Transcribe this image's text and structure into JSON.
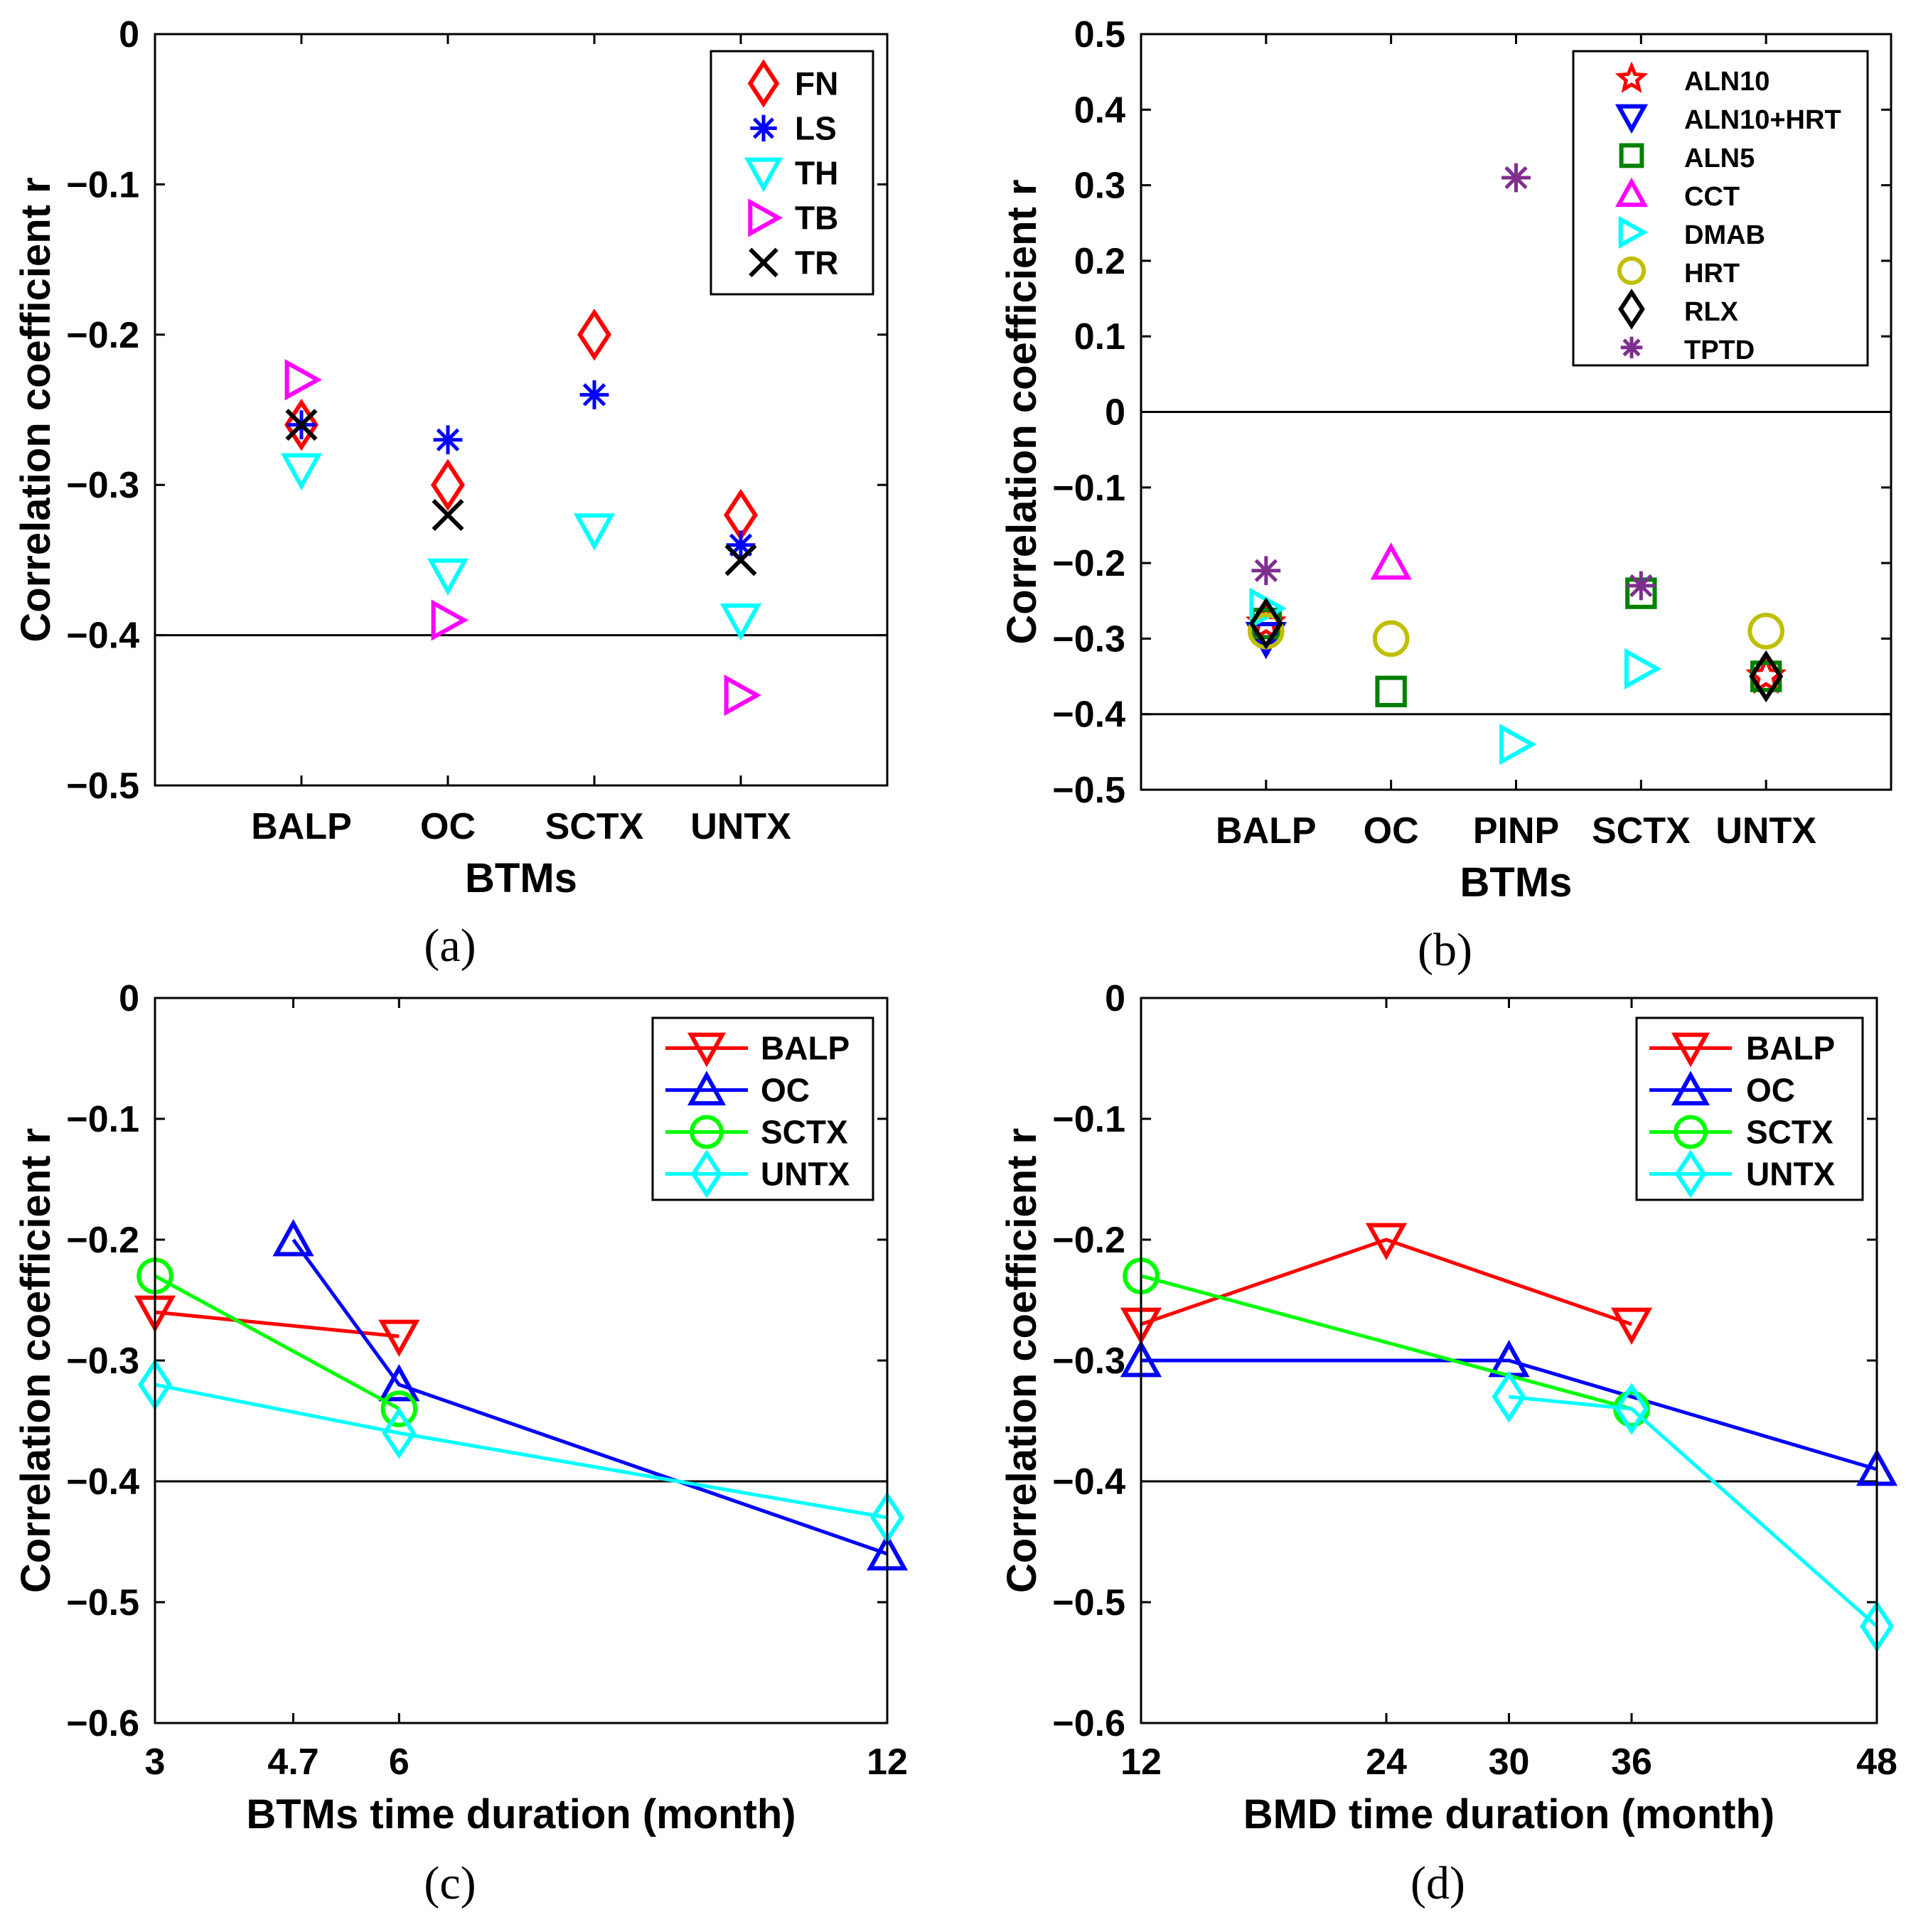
{
  "chart_data": [
    {
      "id": "a",
      "type": "scatter",
      "caption": "(a)",
      "xlabel": "BTMs",
      "ylabel": "Correlation coefficient r",
      "categories": [
        "BALP",
        "OC",
        "SCTX",
        "UNTX"
      ],
      "ylim": [
        -0.5,
        0
      ],
      "yticks": [
        0,
        -0.1,
        -0.2,
        -0.3,
        -0.4,
        -0.5
      ],
      "ytick_labels": [
        "0",
        "−0.1",
        "−0.2",
        "−0.3",
        "−0.4",
        "−0.5"
      ],
      "reference_lines": [
        -0.4
      ],
      "legend_location": "top-right",
      "series": [
        {
          "name": "FN",
          "marker": "diamond",
          "color": "#ff0000",
          "values": [
            -0.26,
            -0.3,
            -0.2,
            -0.32
          ]
        },
        {
          "name": "LS",
          "marker": "asterisk",
          "color": "#0000ff",
          "values": [
            -0.26,
            -0.27,
            -0.24,
            -0.34
          ]
        },
        {
          "name": "TH",
          "marker": "triangle-down",
          "color": "#00ffff",
          "values": [
            -0.29,
            -0.36,
            -0.33,
            -0.39
          ]
        },
        {
          "name": "TB",
          "marker": "triangle-right",
          "color": "#ff00ff",
          "values": [
            -0.23,
            -0.39,
            null,
            -0.44
          ]
        },
        {
          "name": "TR",
          "marker": "x",
          "color": "#000000",
          "values": [
            -0.26,
            -0.32,
            null,
            -0.35
          ]
        }
      ]
    },
    {
      "id": "b",
      "type": "scatter",
      "caption": "(b)",
      "xlabel": "BTMs",
      "ylabel": "Correlation coefficient r",
      "categories": [
        "BALP",
        "OC",
        "PINP",
        "SCTX",
        "UNTX"
      ],
      "ylim": [
        -0.5,
        0.5
      ],
      "yticks": [
        0.5,
        0.4,
        0.3,
        0.2,
        0.1,
        0,
        -0.1,
        -0.2,
        -0.3,
        -0.4,
        -0.5
      ],
      "ytick_labels": [
        "0.5",
        "0.4",
        "0.3",
        "0.2",
        "0.1",
        "0",
        "−0.1",
        "−0.2",
        "−0.3",
        "−0.4",
        "−0.5"
      ],
      "reference_lines": [
        0,
        -0.4
      ],
      "legend_location": "top-right",
      "series": [
        {
          "name": "ALN10",
          "marker": "star",
          "color": "#ff0000",
          "values": [
            -0.28,
            null,
            null,
            null,
            -0.35
          ]
        },
        {
          "name": "ALN10+HRT",
          "marker": "triangle-down",
          "color": "#0000ff",
          "values": [
            -0.3,
            null,
            null,
            null,
            null
          ]
        },
        {
          "name": "ALN5",
          "marker": "square",
          "color": "#008000",
          "values": [
            -0.28,
            -0.37,
            null,
            -0.24,
            -0.35
          ]
        },
        {
          "name": "CCT",
          "marker": "triangle-up",
          "color": "#ff00ff",
          "values": [
            null,
            -0.2,
            null,
            null,
            null
          ]
        },
        {
          "name": "DMAB",
          "marker": "triangle-right",
          "color": "#00ffff",
          "values": [
            -0.26,
            null,
            -0.44,
            -0.34,
            null
          ]
        },
        {
          "name": "HRT",
          "marker": "circle",
          "color": "#bfbf00",
          "values": [
            -0.29,
            -0.3,
            null,
            null,
            -0.29
          ]
        },
        {
          "name": "RLX",
          "marker": "diamond",
          "color": "#000000",
          "values": [
            -0.28,
            null,
            null,
            null,
            -0.35
          ]
        },
        {
          "name": "TPTD",
          "marker": "asterisk",
          "color": "#7e2f8e",
          "values": [
            -0.21,
            null,
            0.31,
            -0.23,
            null
          ]
        }
      ]
    },
    {
      "id": "c",
      "type": "line",
      "caption": "(c)",
      "xlabel": "BTMs time duration (month)",
      "ylabel": "Correlation coefficient r",
      "xlim": [
        3,
        12
      ],
      "xticks": [
        3,
        4.7,
        6,
        12
      ],
      "xtick_labels": [
        "3",
        "4.7",
        "6",
        "12"
      ],
      "ylim": [
        -0.6,
        0
      ],
      "yticks": [
        0,
        -0.1,
        -0.2,
        -0.3,
        -0.4,
        -0.5,
        -0.6
      ],
      "ytick_labels": [
        "0",
        "−0.1",
        "−0.2",
        "−0.3",
        "−0.4",
        "−0.5",
        "−0.6"
      ],
      "reference_lines": [
        -0.4
      ],
      "legend_location": "top-right",
      "series": [
        {
          "name": "BALP",
          "marker": "triangle-down",
          "color": "#ff0000",
          "x": [
            3,
            6
          ],
          "values": [
            -0.26,
            -0.28
          ]
        },
        {
          "name": "OC",
          "marker": "triangle-up",
          "color": "#0000ff",
          "x": [
            4.7,
            6,
            12
          ],
          "values": [
            -0.2,
            -0.32,
            -0.46
          ]
        },
        {
          "name": "SCTX",
          "marker": "circle",
          "color": "#00ff00",
          "x": [
            3,
            6
          ],
          "values": [
            -0.23,
            -0.34
          ]
        },
        {
          "name": "UNTX",
          "marker": "diamond",
          "color": "#00ffff",
          "x": [
            3,
            6,
            12
          ],
          "values": [
            -0.32,
            -0.36,
            -0.43
          ]
        }
      ]
    },
    {
      "id": "d",
      "type": "line",
      "caption": "(d)",
      "xlabel": "BMD time duration (month)",
      "ylabel": "Correlation coefficient r",
      "xlim": [
        12,
        48
      ],
      "xticks": [
        12,
        24,
        30,
        36,
        48
      ],
      "xtick_labels": [
        "12",
        "24",
        "30",
        "36",
        "48"
      ],
      "ylim": [
        -0.6,
        0
      ],
      "yticks": [
        0,
        -0.1,
        -0.2,
        -0.3,
        -0.4,
        -0.5,
        -0.6
      ],
      "ytick_labels": [
        "0",
        "−0.1",
        "−0.2",
        "−0.3",
        "−0.4",
        "−0.5",
        "−0.6"
      ],
      "reference_lines": [
        -0.4
      ],
      "legend_location": "top-right",
      "series": [
        {
          "name": "BALP",
          "marker": "triangle-down",
          "color": "#ff0000",
          "x": [
            12,
            24,
            36
          ],
          "values": [
            -0.27,
            -0.2,
            -0.27
          ]
        },
        {
          "name": "OC",
          "marker": "triangle-up",
          "color": "#0000ff",
          "x": [
            12,
            30,
            48
          ],
          "values": [
            -0.3,
            -0.3,
            -0.39
          ]
        },
        {
          "name": "SCTX",
          "marker": "circle",
          "color": "#00ff00",
          "x": [
            12,
            36
          ],
          "values": [
            -0.23,
            -0.34
          ]
        },
        {
          "name": "UNTX",
          "marker": "diamond",
          "color": "#00ffff",
          "x": [
            30,
            36,
            48
          ],
          "values": [
            -0.33,
            -0.34,
            -0.52
          ]
        }
      ]
    }
  ]
}
